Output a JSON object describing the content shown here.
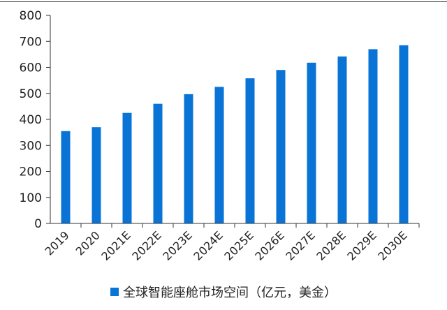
{
  "colors": {
    "bar": "#0a74d6",
    "axis": "#333333"
  },
  "chart_data": {
    "type": "bar",
    "categories": [
      "2019",
      "2020",
      "2021E",
      "2022E",
      "2023E",
      "2024E",
      "2025E",
      "2026E",
      "2027E",
      "2028E",
      "2029E",
      "2030E"
    ],
    "series": [
      {
        "name": "全球智能座舱市场空间（亿元，美金）",
        "values": [
          355,
          370,
          425,
          460,
          497,
          525,
          558,
          590,
          618,
          642,
          670,
          685
        ]
      }
    ],
    "yticks": [
      "0",
      "100",
      "200",
      "300",
      "400",
      "500",
      "600",
      "700",
      "800"
    ],
    "ylim": [
      0,
      800
    ],
    "grid": false,
    "legend": "bottom"
  }
}
